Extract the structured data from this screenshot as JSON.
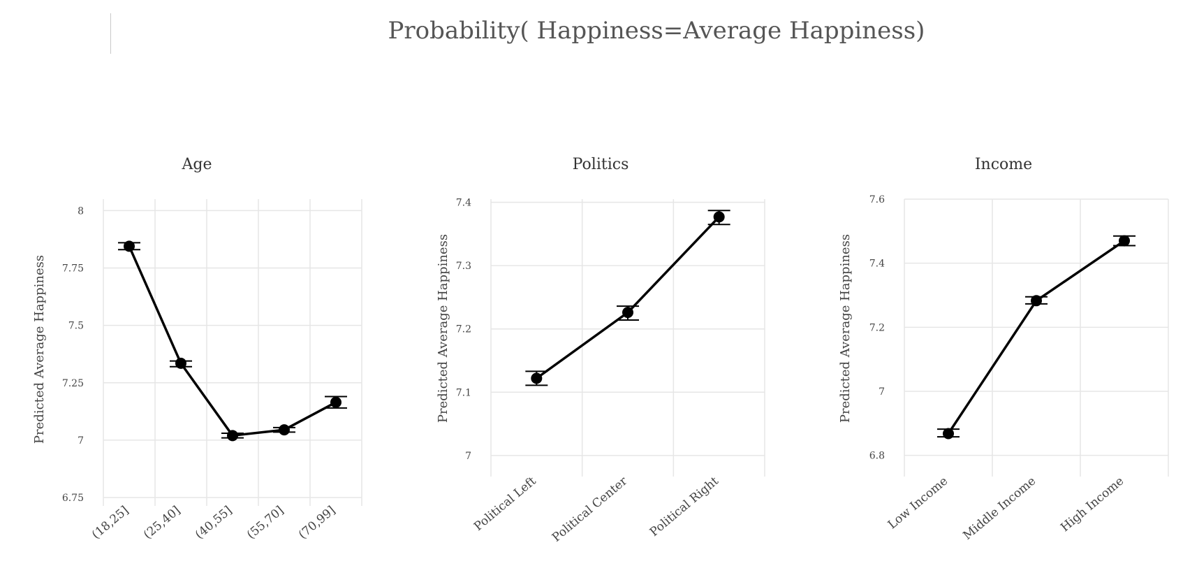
{
  "title": "Probability( Happiness=Average Happiness)",
  "colors": {
    "grid": "#e6e6e6",
    "line": "#000000",
    "text": "#444444",
    "title": "#555555"
  },
  "chart_data": [
    {
      "type": "line",
      "title": "Age",
      "xlabel": "",
      "ylabel": "Predicted Average Happiness",
      "categories": [
        "(18,25]",
        "(25,40]",
        "(40,55]",
        "(55,70]",
        "(70,99]"
      ],
      "values": [
        7.845,
        7.335,
        7.02,
        7.045,
        7.165
      ],
      "error_low": [
        7.83,
        7.32,
        7.01,
        7.035,
        7.14
      ],
      "error_high": [
        7.86,
        7.345,
        7.03,
        7.055,
        7.19
      ],
      "ylim": [
        6.75,
        8.05
      ],
      "yticks": [
        6.75,
        7,
        7.25,
        7.5,
        7.75,
        8
      ],
      "ytick_labels": [
        "6.75",
        "7",
        "7.25",
        "7.5",
        "7.75",
        "8"
      ],
      "grid": true
    },
    {
      "type": "line",
      "title": "Politics",
      "xlabel": "",
      "ylabel": "Predicted Average Happiness",
      "categories": [
        "Political Left",
        "Political Center",
        "Political Right"
      ],
      "values": [
        7.122,
        7.226,
        7.377
      ],
      "error_low": [
        7.111,
        7.214,
        7.365
      ],
      "error_high": [
        7.133,
        7.236,
        7.387
      ],
      "ylim": [
        6.98,
        7.405
      ],
      "yticks": [
        7,
        7.1,
        7.2,
        7.3,
        7.4
      ],
      "ytick_labels": [
        "7",
        "7.1",
        "7.2",
        "7.3",
        "7.4"
      ],
      "grid": true
    },
    {
      "type": "line",
      "title": "Income",
      "xlabel": "",
      "ylabel": "Predicted Average Happiness",
      "categories": [
        "Low Income",
        "Middle Income",
        "High Income"
      ],
      "values": [
        6.868,
        7.283,
        7.47
      ],
      "error_low": [
        6.858,
        7.273,
        7.455
      ],
      "error_high": [
        6.882,
        7.295,
        7.485
      ],
      "ylim": [
        6.76,
        7.6
      ],
      "yticks": [
        6.8,
        7,
        7.2,
        7.4,
        7.6
      ],
      "ytick_labels": [
        "6.8",
        "7",
        "7.2",
        "7.4",
        "7.6"
      ],
      "grid": true
    }
  ]
}
